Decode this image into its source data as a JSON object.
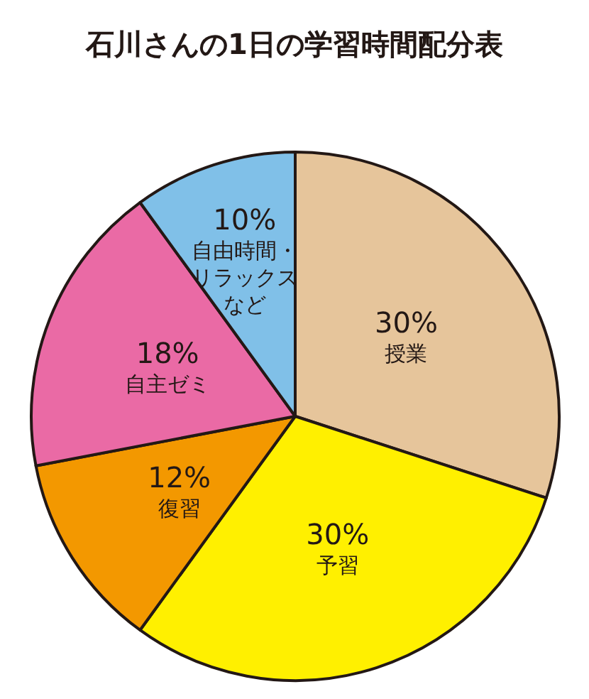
{
  "chart_data": {
    "type": "pie",
    "title": "石川さんの1日の学習時間配分表",
    "categories": [
      "授業",
      "予習",
      "復習",
      "自主ゼミ",
      "自由時間・リラックスなど"
    ],
    "values": [
      30,
      30,
      12,
      18,
      10
    ],
    "value_labels": [
      "30%",
      "30%",
      "12%",
      "18%",
      "10%"
    ],
    "colors": [
      "#e6c59b",
      "#fff000",
      "#f39800",
      "#ea6aa5",
      "#80c0e8"
    ]
  }
}
